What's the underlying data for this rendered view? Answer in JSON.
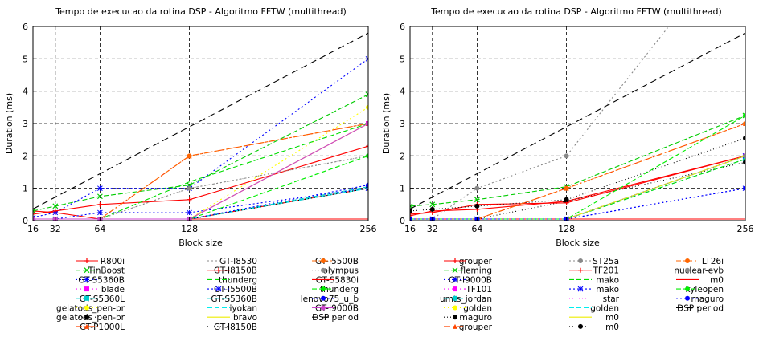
{
  "chart_data": [
    {
      "type": "line",
      "title": "Tempo de execucao da rotina DSP - Algoritmo FFTW (multithread)",
      "xlabel": "Block size",
      "ylabel": "Duration (ms)",
      "xticks": [
        16,
        32,
        64,
        128,
        256
      ],
      "yticks": [
        0,
        1,
        2,
        3,
        4,
        5,
        6
      ],
      "xlim": [
        16,
        256
      ],
      "ylim": [
        0,
        6
      ],
      "grid": true,
      "legend_position": "bottom",
      "series": [
        {
          "name": "R800i",
          "color": "#ff0000",
          "dash": "",
          "marker": "plus",
          "x": [
            16,
            32,
            64,
            128,
            256
          ],
          "y": [
            0.3,
            0.25,
            0.05,
            0.05,
            1.0
          ]
        },
        {
          "name": "TinBoost",
          "color": "#00cc00",
          "dash": "6,3",
          "marker": "x",
          "x": [
            16,
            32,
            64,
            128,
            256
          ],
          "y": [
            0.3,
            0.45,
            0.75,
            1.1,
            3.9
          ]
        },
        {
          "name": "GT-S5360B",
          "color": "#0000ff",
          "dash": "2,3",
          "marker": "star",
          "x": [
            16,
            32,
            64,
            128,
            256
          ],
          "y": [
            0.1,
            0.25,
            1.0,
            1.0,
            5.0
          ]
        },
        {
          "name": "blade",
          "color": "#ff00ff",
          "dash": "2,3",
          "marker": "square",
          "x": [
            16,
            32,
            64,
            128,
            256
          ],
          "y": [
            0.05,
            0.05,
            0.05,
            0.05,
            3.0
          ]
        },
        {
          "name": "GT-S5360L",
          "color": "#00cccc",
          "dash": "6,3",
          "marker": "square",
          "x": [
            16,
            32,
            64,
            128,
            256
          ],
          "y": [
            0.05,
            0.05,
            0.05,
            0.05,
            1.05
          ]
        },
        {
          "name": "gelatods_pen-br",
          "color": "#ffff00",
          "dash": "2,3",
          "marker": "circle",
          "x": [
            16,
            32,
            64,
            128,
            256
          ],
          "y": [
            0.05,
            0.05,
            0.05,
            0.05,
            3.5
          ]
        },
        {
          "name": "gelatods_pen-br",
          "color": "#000000",
          "dash": "1,3",
          "marker": "circle",
          "x": [
            16,
            32,
            64,
            128,
            256
          ],
          "y": [
            0.05,
            0.05,
            0.05,
            0.05,
            1.0
          ]
        },
        {
          "name": "GT-P1000L",
          "color": "#ff4500",
          "dash": "8,3,2,3",
          "marker": "triangle",
          "x": [
            16,
            32,
            64,
            128,
            256
          ],
          "y": [
            0.05,
            0.05,
            0.05,
            2.0,
            3.0
          ]
        },
        {
          "name": "GT-I8530",
          "color": "#888888",
          "dash": "2,3",
          "marker": "none",
          "x": [
            16,
            32,
            64,
            128,
            256
          ],
          "y": [
            0.05,
            0.05,
            0.05,
            1.0,
            2.0
          ]
        },
        {
          "name": "GT-I8150B",
          "color": "#ff0000",
          "dash": "",
          "marker": "plus",
          "x": [
            16,
            32,
            64,
            128,
            256
          ],
          "y": [
            0.2,
            0.3,
            0.5,
            0.65,
            2.3
          ]
        },
        {
          "name": "thunderg",
          "color": "#00dd00",
          "dash": "6,3",
          "marker": "none",
          "x": [
            16,
            32,
            64,
            128,
            256
          ],
          "y": [
            0.05,
            0.05,
            0.05,
            1.2,
            3.0
          ]
        },
        {
          "name": "GT-I5500B",
          "color": "#0000ff",
          "dash": "2,3",
          "marker": "star",
          "x": [
            16,
            32,
            64,
            128,
            256
          ],
          "y": [
            0.05,
            0.05,
            0.25,
            0.25,
            1.0
          ]
        },
        {
          "name": "GT-S5360B",
          "color": "#00cccc",
          "dash": "6,3",
          "marker": "none",
          "x": [
            16,
            32,
            64,
            128,
            256
          ],
          "y": [
            0.05,
            0.05,
            0.05,
            0.05,
            1.0
          ]
        },
        {
          "name": "iyokan",
          "color": "#00eeee",
          "dash": "6,3",
          "marker": "none",
          "x": [
            16,
            32,
            64,
            128,
            256
          ],
          "y": [
            0.05,
            0.05,
            0.05,
            0.05,
            1.0
          ]
        },
        {
          "name": "bravo",
          "color": "#eeee00",
          "dash": "",
          "marker": "none",
          "x": [
            16,
            32,
            64,
            128,
            256
          ],
          "y": [
            0.05,
            0.05,
            0.05,
            0.05,
            3.0
          ]
        },
        {
          "name": "GT-I8150B",
          "color": "#000000",
          "dash": "1,3",
          "marker": "none",
          "x": [
            16,
            32,
            64,
            128,
            256
          ],
          "y": [
            0.05,
            0.05,
            0.05,
            0.05,
            1.0
          ]
        },
        {
          "name": "GT-I5500B",
          "color": "#ff6600",
          "dash": "6,3,2,3",
          "marker": "circle",
          "x": [
            16,
            32,
            64,
            128,
            256
          ],
          "y": [
            0.05,
            0.05,
            0.05,
            2.0,
            3.0
          ]
        },
        {
          "name": "olympus",
          "color": "#888888",
          "dash": "1,3",
          "marker": "circle",
          "x": [
            16,
            32,
            64,
            128,
            256
          ],
          "y": [
            0.05,
            0.05,
            0.05,
            1.0,
            2.0
          ]
        },
        {
          "name": "GT-S5830i",
          "color": "#ff0000",
          "dash": "",
          "marker": "none",
          "x": [
            16,
            32,
            64,
            128,
            256
          ],
          "y": [
            0.05,
            0.05,
            0.05,
            0.05,
            0.05
          ]
        },
        {
          "name": "thunderg",
          "color": "#00ee00",
          "dash": "6,3",
          "marker": "circle",
          "x": [
            16,
            32,
            64,
            128,
            256
          ],
          "y": [
            0.05,
            0.05,
            0.05,
            0.05,
            2.0
          ]
        },
        {
          "name": "lenovo75_u_b",
          "color": "#0000ff",
          "dash": "2,3",
          "marker": "circle",
          "x": [
            16,
            32,
            64,
            128,
            256
          ],
          "y": [
            0.05,
            0.05,
            0.05,
            0.05,
            1.1
          ]
        },
        {
          "name": "GT-I9000B",
          "color": "#cc44cc",
          "dash": "",
          "marker": "circle",
          "x": [
            16,
            32,
            64,
            128,
            256
          ],
          "y": [
            0.05,
            0.05,
            0.05,
            0.05,
            3.0
          ]
        },
        {
          "name": "DSP period",
          "color": "#000000",
          "dash": "8,5",
          "marker": "none",
          "x": [
            16,
            32,
            64,
            128,
            256
          ],
          "y": [
            0.36,
            0.73,
            1.45,
            2.9,
            5.8
          ]
        }
      ]
    },
    {
      "type": "line",
      "title": "Tempo de execucao da rotina DSP - Algoritmo FFTW (multithread)",
      "xlabel": "Block size",
      "ylabel": "Duration (ms)",
      "xticks": [
        16,
        32,
        64,
        128,
        256
      ],
      "yticks": [
        0,
        1,
        2,
        3,
        4,
        5,
        6
      ],
      "xlim": [
        16,
        256
      ],
      "ylim": [
        0,
        6
      ],
      "grid": true,
      "legend_position": "bottom",
      "series": [
        {
          "name": "grouper",
          "color": "#ff0000",
          "dash": "",
          "marker": "plus",
          "x": [
            16,
            32,
            64,
            128,
            256
          ],
          "y": [
            0.15,
            0.3,
            0.35,
            0.6,
            2.0
          ]
        },
        {
          "name": "fleming",
          "color": "#00cc00",
          "dash": "6,3",
          "marker": "x",
          "x": [
            16,
            32,
            64,
            128,
            256
          ],
          "y": [
            0.45,
            0.5,
            0.65,
            1.05,
            3.25
          ]
        },
        {
          "name": "GT-I9000B",
          "color": "#0000ff",
          "dash": "2,3",
          "marker": "star",
          "x": [
            16,
            32,
            64,
            128,
            256
          ],
          "y": [
            0.05,
            0.05,
            0.05,
            0.05,
            1.0
          ]
        },
        {
          "name": "TF101",
          "color": "#ff00ff",
          "dash": "2,3",
          "marker": "square",
          "x": [
            16,
            32,
            64,
            128,
            256
          ],
          "y": [
            0.05,
            0.05,
            0.05,
            0.05,
            2.0
          ]
        },
        {
          "name": "umts_jordan",
          "color": "#00cccc",
          "dash": "6,3",
          "marker": "square",
          "x": [
            16,
            32,
            64,
            128,
            256
          ],
          "y": [
            0.05,
            0.05,
            0.05,
            0.05,
            1.9
          ]
        },
        {
          "name": "golden",
          "color": "#ffff00",
          "dash": "2,3",
          "marker": "circle",
          "x": [
            16,
            32,
            64,
            128,
            256
          ],
          "y": [
            0.05,
            0.05,
            0.05,
            0.05,
            2.0
          ]
        },
        {
          "name": "maguro",
          "color": "#000000",
          "dash": "1,3",
          "marker": "circle",
          "x": [
            16,
            32,
            64,
            128,
            256
          ],
          "y": [
            0.05,
            0.05,
            0.05,
            0.6,
            1.8
          ]
        },
        {
          "name": "grouper",
          "color": "#ff4500",
          "dash": "8,3,2,3",
          "marker": "triangle",
          "x": [
            16,
            32,
            64,
            128,
            256
          ],
          "y": [
            0.05,
            0.05,
            0.05,
            1.0,
            3.0
          ]
        },
        {
          "name": "ST25a",
          "color": "#888888",
          "dash": "2,3",
          "marker": "circle",
          "x": [
            16,
            32,
            64,
            128,
            256
          ],
          "y": [
            0.05,
            0.05,
            1.0,
            2.0,
            9.0
          ]
        },
        {
          "name": "TF201",
          "color": "#ff0000",
          "dash": "",
          "marker": "plus",
          "x": [
            16,
            32,
            64,
            128,
            256
          ],
          "y": [
            0.2,
            0.25,
            0.5,
            0.55,
            2.0
          ]
        },
        {
          "name": "mako",
          "color": "#00dd00",
          "dash": "6,3",
          "marker": "none",
          "x": [
            16,
            32,
            64,
            128,
            256
          ],
          "y": [
            0.05,
            0.05,
            0.05,
            0.05,
            1.9
          ]
        },
        {
          "name": "mako",
          "color": "#0000ff",
          "dash": "2,3",
          "marker": "star",
          "x": [
            16,
            32,
            64,
            128,
            256
          ],
          "y": [
            0.05,
            0.05,
            0.05,
            0.05,
            2.0
          ]
        },
        {
          "name": "star",
          "color": "#ff00ff",
          "dash": "1,3",
          "marker": "none",
          "x": [
            16,
            32,
            64,
            128,
            256
          ],
          "y": [
            0.05,
            0.05,
            0.05,
            0.05,
            2.0
          ]
        },
        {
          "name": "golden",
          "color": "#00eeee",
          "dash": "6,3",
          "marker": "none",
          "x": [
            16,
            32,
            64,
            128,
            256
          ],
          "y": [
            0.05,
            0.05,
            0.05,
            0.05,
            2.0
          ]
        },
        {
          "name": "m0",
          "color": "#eeee00",
          "dash": "",
          "marker": "none",
          "x": [
            16,
            32,
            64,
            128,
            256
          ],
          "y": [
            0.05,
            0.05,
            0.05,
            0.05,
            2.0
          ]
        },
        {
          "name": "m0",
          "color": "#000000",
          "dash": "1,3",
          "marker": "circle",
          "x": [
            16,
            32,
            64,
            128,
            256
          ],
          "y": [
            0.3,
            0.35,
            0.45,
            0.65,
            2.55
          ]
        },
        {
          "name": "LT26i",
          "color": "#ff6600",
          "dash": "6,3,2,3",
          "marker": "circle",
          "x": [
            16,
            32,
            64,
            128,
            256
          ],
          "y": [
            0.05,
            0.05,
            0.05,
            1.0,
            3.0
          ]
        },
        {
          "name": "nuclear-evb",
          "color": "#888888",
          "dash": "1,3",
          "marker": "circle",
          "x": [
            16,
            32,
            64,
            128,
            256
          ],
          "y": [
            0.05,
            0.05,
            0.05,
            0.05,
            2.0
          ]
        },
        {
          "name": "m0",
          "color": "#ff0000",
          "dash": "",
          "marker": "none",
          "x": [
            16,
            32,
            64,
            128,
            256
          ],
          "y": [
            0.05,
            0.05,
            0.05,
            0.05,
            0.05
          ]
        },
        {
          "name": "kyleopen",
          "color": "#00ee00",
          "dash": "6,3",
          "marker": "circle",
          "x": [
            16,
            32,
            64,
            128,
            256
          ],
          "y": [
            0.05,
            0.05,
            0.05,
            0.05,
            3.25
          ]
        },
        {
          "name": "maguro",
          "color": "#0000ff",
          "dash": "2,3",
          "marker": "circle",
          "x": [
            16,
            32,
            64,
            128,
            256
          ],
          "y": [
            0.05,
            0.05,
            0.05,
            0.05,
            1.0
          ]
        },
        {
          "name": "DSP period",
          "color": "#000000",
          "dash": "8,5",
          "marker": "none",
          "x": [
            16,
            32,
            64,
            128,
            256
          ],
          "y": [
            0.36,
            0.73,
            1.45,
            2.9,
            5.8
          ]
        }
      ]
    }
  ]
}
